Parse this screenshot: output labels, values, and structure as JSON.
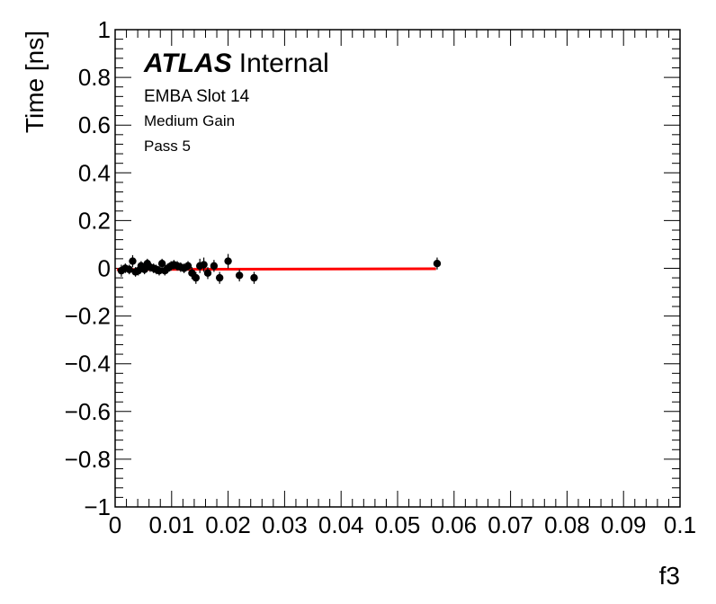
{
  "chart_data": {
    "type": "scatter",
    "title": "",
    "xlabel": "f3",
    "ylabel": "Time [ns]",
    "xlim": [
      0,
      0.1
    ],
    "ylim": [
      -1,
      1
    ],
    "x_ticks": [
      {
        "value": 0,
        "label": "0"
      },
      {
        "value": 0.01,
        "label": "0.01"
      },
      {
        "value": 0.02,
        "label": "0.02"
      },
      {
        "value": 0.03,
        "label": "0.03"
      },
      {
        "value": 0.04,
        "label": "0.04"
      },
      {
        "value": 0.05,
        "label": "0.05"
      },
      {
        "value": 0.06,
        "label": "0.06"
      },
      {
        "value": 0.07,
        "label": "0.07"
      },
      {
        "value": 0.08,
        "label": "0.08"
      },
      {
        "value": 0.09,
        "label": "0.09"
      },
      {
        "value": 0.1,
        "label": "0.1"
      }
    ],
    "y_ticks": [
      {
        "value": 1,
        "label": "1"
      },
      {
        "value": 0.8,
        "label": "0.8"
      },
      {
        "value": 0.6,
        "label": "0.6"
      },
      {
        "value": 0.4,
        "label": "0.4"
      },
      {
        "value": 0.2,
        "label": "0.2"
      },
      {
        "value": 0,
        "label": "0"
      },
      {
        "value": -0.2,
        "label": "−0.2"
      },
      {
        "value": -0.4,
        "label": "−0.4"
      },
      {
        "value": -0.6,
        "label": "−0.6"
      },
      {
        "value": -0.8,
        "label": "−0.8"
      },
      {
        "value": -1,
        "label": "−1"
      }
    ],
    "annotations": {
      "experiment": "ATLAS",
      "status": "Internal",
      "lines": [
        "EMBA Slot 14",
        "Medium Gain",
        "Pass 5"
      ]
    },
    "fit_line": {
      "x": [
        0.0003,
        0.0568
      ],
      "y": [
        -0.005,
        -0.002
      ],
      "color": "#ff0000"
    },
    "points": [
      {
        "x": 0.0011,
        "y": -0.01,
        "err": 0.025
      },
      {
        "x": 0.0018,
        "y": 0.0,
        "err": 0.02
      },
      {
        "x": 0.0025,
        "y": -0.005,
        "err": 0.02
      },
      {
        "x": 0.0031,
        "y": 0.03,
        "err": 0.025
      },
      {
        "x": 0.0036,
        "y": -0.015,
        "err": 0.02
      },
      {
        "x": 0.0041,
        "y": -0.01,
        "err": 0.02
      },
      {
        "x": 0.0046,
        "y": 0.01,
        "err": 0.02
      },
      {
        "x": 0.0052,
        "y": -0.005,
        "err": 0.02
      },
      {
        "x": 0.0057,
        "y": 0.02,
        "err": 0.02
      },
      {
        "x": 0.0062,
        "y": 0.005,
        "err": 0.02
      },
      {
        "x": 0.0068,
        "y": 0.0,
        "err": 0.02
      },
      {
        "x": 0.0073,
        "y": -0.005,
        "err": 0.02
      },
      {
        "x": 0.0078,
        "y": -0.01,
        "err": 0.02
      },
      {
        "x": 0.0083,
        "y": 0.02,
        "err": 0.02
      },
      {
        "x": 0.0088,
        "y": -0.01,
        "err": 0.02
      },
      {
        "x": 0.0093,
        "y": 0.0,
        "err": 0.02
      },
      {
        "x": 0.0099,
        "y": 0.01,
        "err": 0.02
      },
      {
        "x": 0.0104,
        "y": 0.015,
        "err": 0.02
      },
      {
        "x": 0.011,
        "y": 0.01,
        "err": 0.02
      },
      {
        "x": 0.0116,
        "y": 0.005,
        "err": 0.02
      },
      {
        "x": 0.0122,
        "y": 0.0,
        "err": 0.02
      },
      {
        "x": 0.0129,
        "y": 0.01,
        "err": 0.02
      },
      {
        "x": 0.0136,
        "y": -0.02,
        "err": 0.025
      },
      {
        "x": 0.0143,
        "y": -0.04,
        "err": 0.025
      },
      {
        "x": 0.015,
        "y": 0.01,
        "err": 0.03
      },
      {
        "x": 0.0157,
        "y": 0.015,
        "err": 0.03
      },
      {
        "x": 0.0164,
        "y": -0.02,
        "err": 0.025
      },
      {
        "x": 0.0175,
        "y": 0.01,
        "err": 0.025
      },
      {
        "x": 0.0185,
        "y": -0.04,
        "err": 0.025
      },
      {
        "x": 0.02,
        "y": 0.03,
        "err": 0.03
      },
      {
        "x": 0.022,
        "y": -0.03,
        "err": 0.025
      },
      {
        "x": 0.0246,
        "y": -0.04,
        "err": 0.025
      },
      {
        "x": 0.057,
        "y": 0.02,
        "err": 0.025
      }
    ]
  }
}
